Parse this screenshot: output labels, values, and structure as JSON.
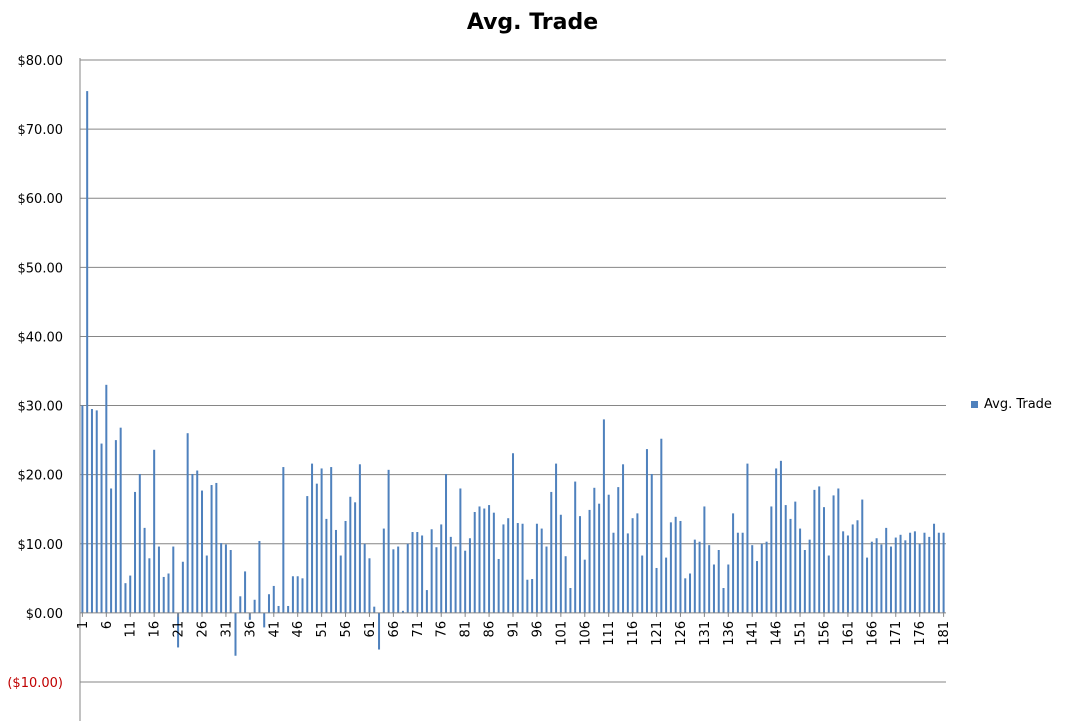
{
  "chart_data": {
    "type": "bar",
    "title": "Avg. Trade",
    "xlabel": "",
    "ylabel": "",
    "ylim": [
      -10,
      80
    ],
    "y_ticks": [
      {
        "value": 80,
        "label": "$80.00"
      },
      {
        "value": 70,
        "label": "$70.00"
      },
      {
        "value": 60,
        "label": "$60.00"
      },
      {
        "value": 50,
        "label": "$50.00"
      },
      {
        "value": 40,
        "label": "$40.00"
      },
      {
        "value": 30,
        "label": "$30.00"
      },
      {
        "value": 20,
        "label": "$20.00"
      },
      {
        "value": 10,
        "label": "$10.00"
      },
      {
        "value": 0,
        "label": "$0.00"
      },
      {
        "value": -10,
        "label": "($10.00)"
      }
    ],
    "x_tick_labels": [
      "1",
      "6",
      "11",
      "16",
      "21",
      "26",
      "31",
      "36",
      "41",
      "46",
      "51",
      "56",
      "61",
      "66",
      "71",
      "76",
      "81",
      "86",
      "91",
      "96",
      "101",
      "106",
      "111",
      "116",
      "121",
      "126",
      "131",
      "136",
      "141",
      "146",
      "151",
      "156",
      "161",
      "166",
      "171",
      "176",
      "181"
    ],
    "grid": true,
    "legend_position": "right",
    "colors": {
      "bar": "#4F81BD",
      "negative_label": "#C00000",
      "grid": "#868686",
      "axis": "#868686"
    },
    "series": [
      {
        "name": "Avg. Trade",
        "values": [
          30.0,
          75.5,
          29.5,
          29.3,
          24.5,
          33.0,
          18.0,
          25.0,
          26.8,
          4.3,
          5.4,
          17.5,
          20.1,
          12.3,
          7.9,
          23.6,
          9.6,
          5.2,
          5.7,
          9.6,
          -5.0,
          7.4,
          26.0,
          20.1,
          20.6,
          17.7,
          8.3,
          18.5,
          18.8,
          10.1,
          9.9,
          9.1,
          -6.2,
          2.4,
          6.0,
          -1.0,
          1.9,
          10.4,
          -2.1,
          2.7,
          3.9,
          1.0,
          21.1,
          1.0,
          5.3,
          5.3,
          5.0,
          16.9,
          21.6,
          18.7,
          20.9,
          13.6,
          21.1,
          12.0,
          8.3,
          13.3,
          16.8,
          16.0,
          21.5,
          10.0,
          7.9,
          0.9,
          -5.3,
          12.2,
          20.7,
          9.2,
          9.6,
          0.3,
          10.0,
          11.7,
          11.7,
          11.2,
          3.3,
          12.1,
          9.5,
          12.8,
          20.1,
          11.0,
          9.6,
          18.0,
          9.0,
          10.8,
          14.6,
          15.4,
          15.1,
          15.6,
          14.5,
          7.8,
          12.8,
          13.7,
          23.1,
          13.0,
          12.9,
          4.8,
          4.9,
          12.9,
          12.2,
          9.6,
          17.5,
          21.6,
          14.2,
          8.2,
          3.6,
          19.0,
          14.0,
          7.7,
          14.9,
          18.1,
          15.8,
          28.0,
          17.1,
          11.6,
          18.2,
          21.5,
          11.5,
          13.7,
          14.4,
          8.3,
          23.7,
          20.1,
          6.5,
          25.2,
          8.0,
          13.1,
          13.9,
          13.3,
          5.0,
          5.7,
          10.6,
          10.3,
          15.4,
          9.8,
          7.0,
          9.1,
          3.6,
          7.0,
          14.4,
          11.6,
          11.6,
          21.6,
          9.8,
          7.5,
          10.0,
          10.3,
          15.4,
          20.9,
          22.0,
          15.6,
          13.6,
          16.1,
          12.2,
          9.1,
          10.6,
          17.8,
          18.3,
          15.3,
          8.3,
          17.0,
          18.0,
          11.8,
          11.2,
          12.8,
          13.4,
          16.4,
          8.0,
          10.3,
          10.8,
          9.9,
          12.3,
          9.6,
          10.9,
          11.3,
          10.5,
          11.6,
          11.8,
          10.0,
          11.6,
          11.0,
          12.9,
          11.6,
          11.6
        ]
      }
    ]
  }
}
